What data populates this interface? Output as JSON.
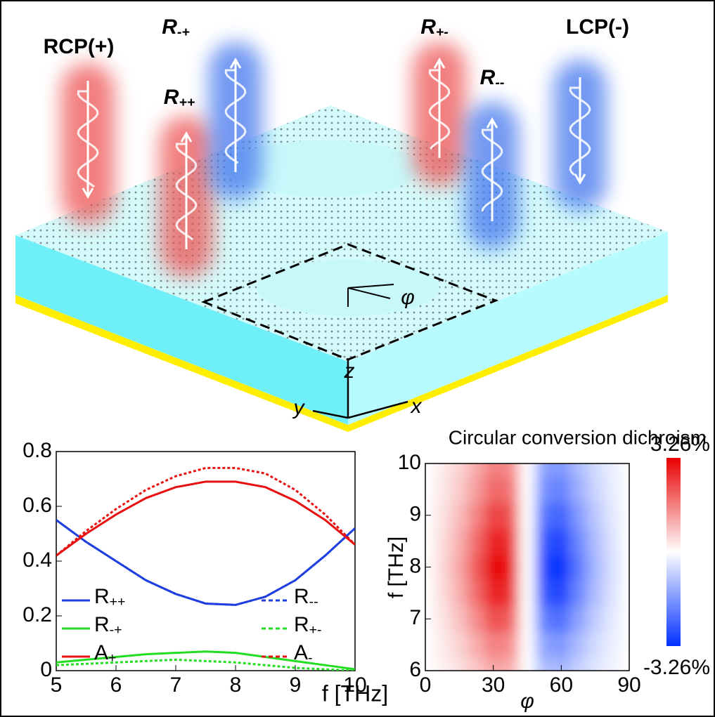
{
  "illustration": {
    "labels": [
      "RCP(+)",
      "R++",
      "R-+",
      "R+-",
      "R--",
      "LCP(-)"
    ],
    "axes": [
      "z",
      "y",
      "x"
    ],
    "angle": "φ"
  },
  "chart_data": [
    {
      "type": "line",
      "xlabel": "f [THz]",
      "x": [
        5,
        5.5,
        6,
        6.5,
        7,
        7.5,
        8,
        8.5,
        9,
        9.5,
        10
      ],
      "series": [
        {
          "name": "R++",
          "color": "#1f3fe0",
          "dash": false,
          "values": [
            0.55,
            0.47,
            0.4,
            0.33,
            0.28,
            0.245,
            0.24,
            0.27,
            0.33,
            0.42,
            0.52
          ]
        },
        {
          "name": "R--",
          "color": "#1f3fe0",
          "dash": true,
          "values": [
            0.55,
            0.47,
            0.4,
            0.33,
            0.28,
            0.245,
            0.24,
            0.27,
            0.33,
            0.42,
            0.52
          ]
        },
        {
          "name": "R-+",
          "color": "#22dd22",
          "dash": false,
          "values": [
            0.03,
            0.04,
            0.05,
            0.06,
            0.065,
            0.07,
            0.065,
            0.05,
            0.035,
            0.02,
            0.005
          ]
        },
        {
          "name": "R+-",
          "color": "#22dd22",
          "dash": true,
          "values": [
            0.02,
            0.025,
            0.03,
            0.035,
            0.04,
            0.035,
            0.03,
            0.02,
            0.01,
            0.005,
            0.0
          ]
        },
        {
          "name": "A+",
          "color": "#e81010",
          "dash": false,
          "values": [
            0.42,
            0.5,
            0.57,
            0.63,
            0.67,
            0.69,
            0.69,
            0.67,
            0.62,
            0.55,
            0.46
          ]
        },
        {
          "name": "A-",
          "color": "#e81010",
          "dash": true,
          "values": [
            0.42,
            0.51,
            0.59,
            0.66,
            0.71,
            0.74,
            0.74,
            0.72,
            0.66,
            0.57,
            0.46
          ]
        }
      ],
      "xlim": [
        5,
        10
      ],
      "xticks": [
        5,
        6,
        7,
        8,
        9,
        10
      ],
      "ylim": [
        0,
        0.8
      ],
      "yticks": [
        0,
        0.2,
        0.4,
        0.6,
        0.8
      ]
    },
    {
      "type": "heatmap",
      "title": "Circular conversion dichroism",
      "xlabel": "φ",
      "ylabel": "f [THz]",
      "x": [
        0,
        7.5,
        15,
        22.5,
        30,
        37.5,
        45,
        52.5,
        60,
        67.5,
        75,
        82.5,
        90
      ],
      "y": [
        6,
        6.5,
        7,
        7.5,
        8,
        8.5,
        9,
        9.5,
        10
      ],
      "z": [
        [
          0,
          0.17,
          0.4,
          0.74,
          1.14,
          1.03,
          0,
          -1.03,
          -1.14,
          -0.74,
          -0.4,
          -0.17,
          0
        ],
        [
          0,
          0.25,
          0.57,
          1.06,
          1.63,
          1.47,
          0,
          -1.47,
          -1.63,
          -1.06,
          -0.57,
          -0.25,
          0
        ],
        [
          0,
          0.34,
          0.8,
          1.48,
          2.28,
          2.05,
          0,
          -2.05,
          -2.28,
          -1.48,
          -0.8,
          -0.34,
          0
        ],
        [
          0,
          0.44,
          1.03,
          1.91,
          2.93,
          2.64,
          0,
          -2.64,
          -2.93,
          -1.91,
          -1.03,
          -0.44,
          0
        ],
        [
          0,
          0.49,
          1.14,
          2.12,
          3.26,
          2.93,
          0,
          -2.93,
          -3.26,
          -2.12,
          -1.14,
          -0.49,
          0
        ],
        [
          0,
          0.44,
          1.03,
          1.91,
          2.93,
          2.64,
          0,
          -2.64,
          -2.93,
          -1.91,
          -1.03,
          -0.44,
          0
        ],
        [
          0,
          0.37,
          0.86,
          1.59,
          2.45,
          2.2,
          0,
          -2.2,
          -2.45,
          -1.59,
          -0.86,
          -0.37,
          0
        ],
        [
          0,
          0.29,
          0.68,
          1.27,
          1.96,
          1.76,
          0,
          -1.76,
          -1.96,
          -1.27,
          -0.68,
          -0.29,
          0
        ],
        [
          0,
          0.25,
          0.57,
          1.06,
          1.63,
          1.47,
          0,
          -1.47,
          -1.63,
          -1.06,
          -0.57,
          -0.25,
          0
        ]
      ],
      "xlim": [
        0,
        90
      ],
      "xticks": [
        0,
        30,
        60,
        90
      ],
      "ylim": [
        6,
        10
      ],
      "yticks": [
        6,
        7,
        8,
        9,
        10
      ],
      "colorbar_ticks": [
        {
          "value": 3.26,
          "label": "3.26%"
        },
        {
          "value": -3.26,
          "label": "-3.26%"
        }
      ],
      "colors": {
        "positive": "#e80000",
        "negative": "#0030ff",
        "zero": "#ffffff"
      }
    }
  ]
}
